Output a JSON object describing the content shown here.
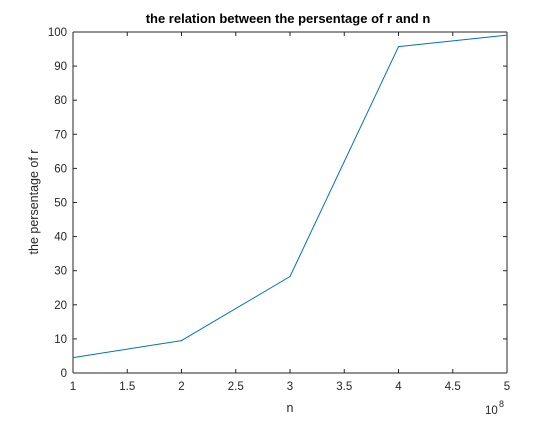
{
  "chart_data": {
    "type": "line",
    "title": "the relation between the persentage of r and n",
    "xlabel": "n",
    "ylabel": "the persentage of r",
    "x_exponent_label": "10",
    "x_exponent_power": "8",
    "x": [
      1,
      2,
      3,
      4,
      5
    ],
    "series": [
      {
        "values": [
          4.5,
          9.5,
          28.3,
          95.7,
          99.1
        ],
        "color": "#0072BD"
      }
    ],
    "xlim": [
      1,
      5
    ],
    "ylim": [
      0,
      100
    ],
    "x_ticks": [
      1,
      1.5,
      2,
      2.5,
      3,
      3.5,
      4,
      4.5,
      5
    ],
    "x_tick_labels": [
      "1",
      "1.5",
      "2",
      "2.5",
      "3",
      "3.5",
      "4",
      "4.5",
      "5"
    ],
    "y_ticks": [
      0,
      10,
      20,
      30,
      40,
      50,
      60,
      70,
      80,
      90,
      100
    ],
    "y_tick_labels": [
      "0",
      "10",
      "20",
      "30",
      "40",
      "50",
      "60",
      "70",
      "80",
      "90",
      "100"
    ],
    "grid": false,
    "box": true
  }
}
